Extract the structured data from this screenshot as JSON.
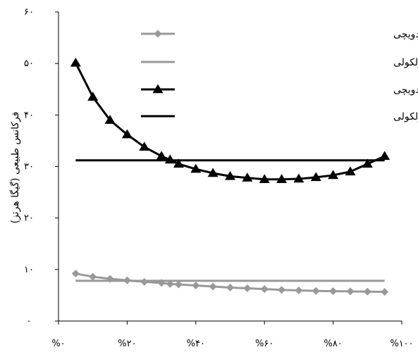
{
  "chart_data": {
    "type": "line",
    "xlabel": "",
    "ylabel": "فرکانس طبیعی (گیگا هرتز)",
    "xlim": [
      0,
      100
    ],
    "ylim": [
      0,
      60
    ],
    "x_ticks": [
      "%۰",
      "%۲۰",
      "%۴۰",
      "%۶۰",
      "%۸۰",
      "%۱۰۰"
    ],
    "y_ticks": [
      "۰",
      "۱۰",
      "۲۰",
      "۳۰",
      "۴۰",
      "۵۰",
      "۶۰"
    ],
    "legend_position": "top-right",
    "grid": false,
    "series": [
      {
        "name": "فرکانس اول/مدل تیر ساندویچی",
        "color": "#999999",
        "marker": "diamond",
        "x": [
          5,
          10,
          15,
          20,
          25,
          30,
          32.5,
          35,
          40,
          45,
          50,
          55,
          60,
          65,
          70,
          75,
          80,
          85,
          90,
          95
        ],
        "y": [
          9.2,
          8.6,
          8.2,
          7.9,
          7.6,
          7.4,
          7.2,
          7.1,
          6.9,
          6.7,
          6.5,
          6.35,
          6.2,
          6.05,
          5.95,
          5.85,
          5.8,
          5.75,
          5.7,
          5.65
        ]
      },
      {
        "name": "فرکانس اول/شبیه سازی دینامیک مولکولی",
        "color": "#999999",
        "marker": "none",
        "x": [
          5,
          95
        ],
        "y": [
          7.8,
          7.8
        ]
      },
      {
        "name": "فرکانس دوم/مدل تیر ساندویچی",
        "color": "#000000",
        "marker": "triangle",
        "x": [
          5,
          10,
          15,
          20,
          25,
          30,
          32.5,
          35,
          40,
          45,
          50,
          55,
          60,
          65,
          70,
          75,
          80,
          85,
          90,
          95
        ],
        "y": [
          50.1,
          43.5,
          39.0,
          36.2,
          33.8,
          32.0,
          31.3,
          30.5,
          29.5,
          28.7,
          28.1,
          27.8,
          27.5,
          27.5,
          27.6,
          27.9,
          28.3,
          29.0,
          30.5,
          32.0
        ]
      },
      {
        "name": "فرکانس دوم/شبیه سازی دینامیک مولکولی",
        "color": "#000000",
        "marker": "none",
        "x": [
          5,
          95
        ],
        "y": [
          31.2,
          31.2
        ]
      }
    ]
  }
}
